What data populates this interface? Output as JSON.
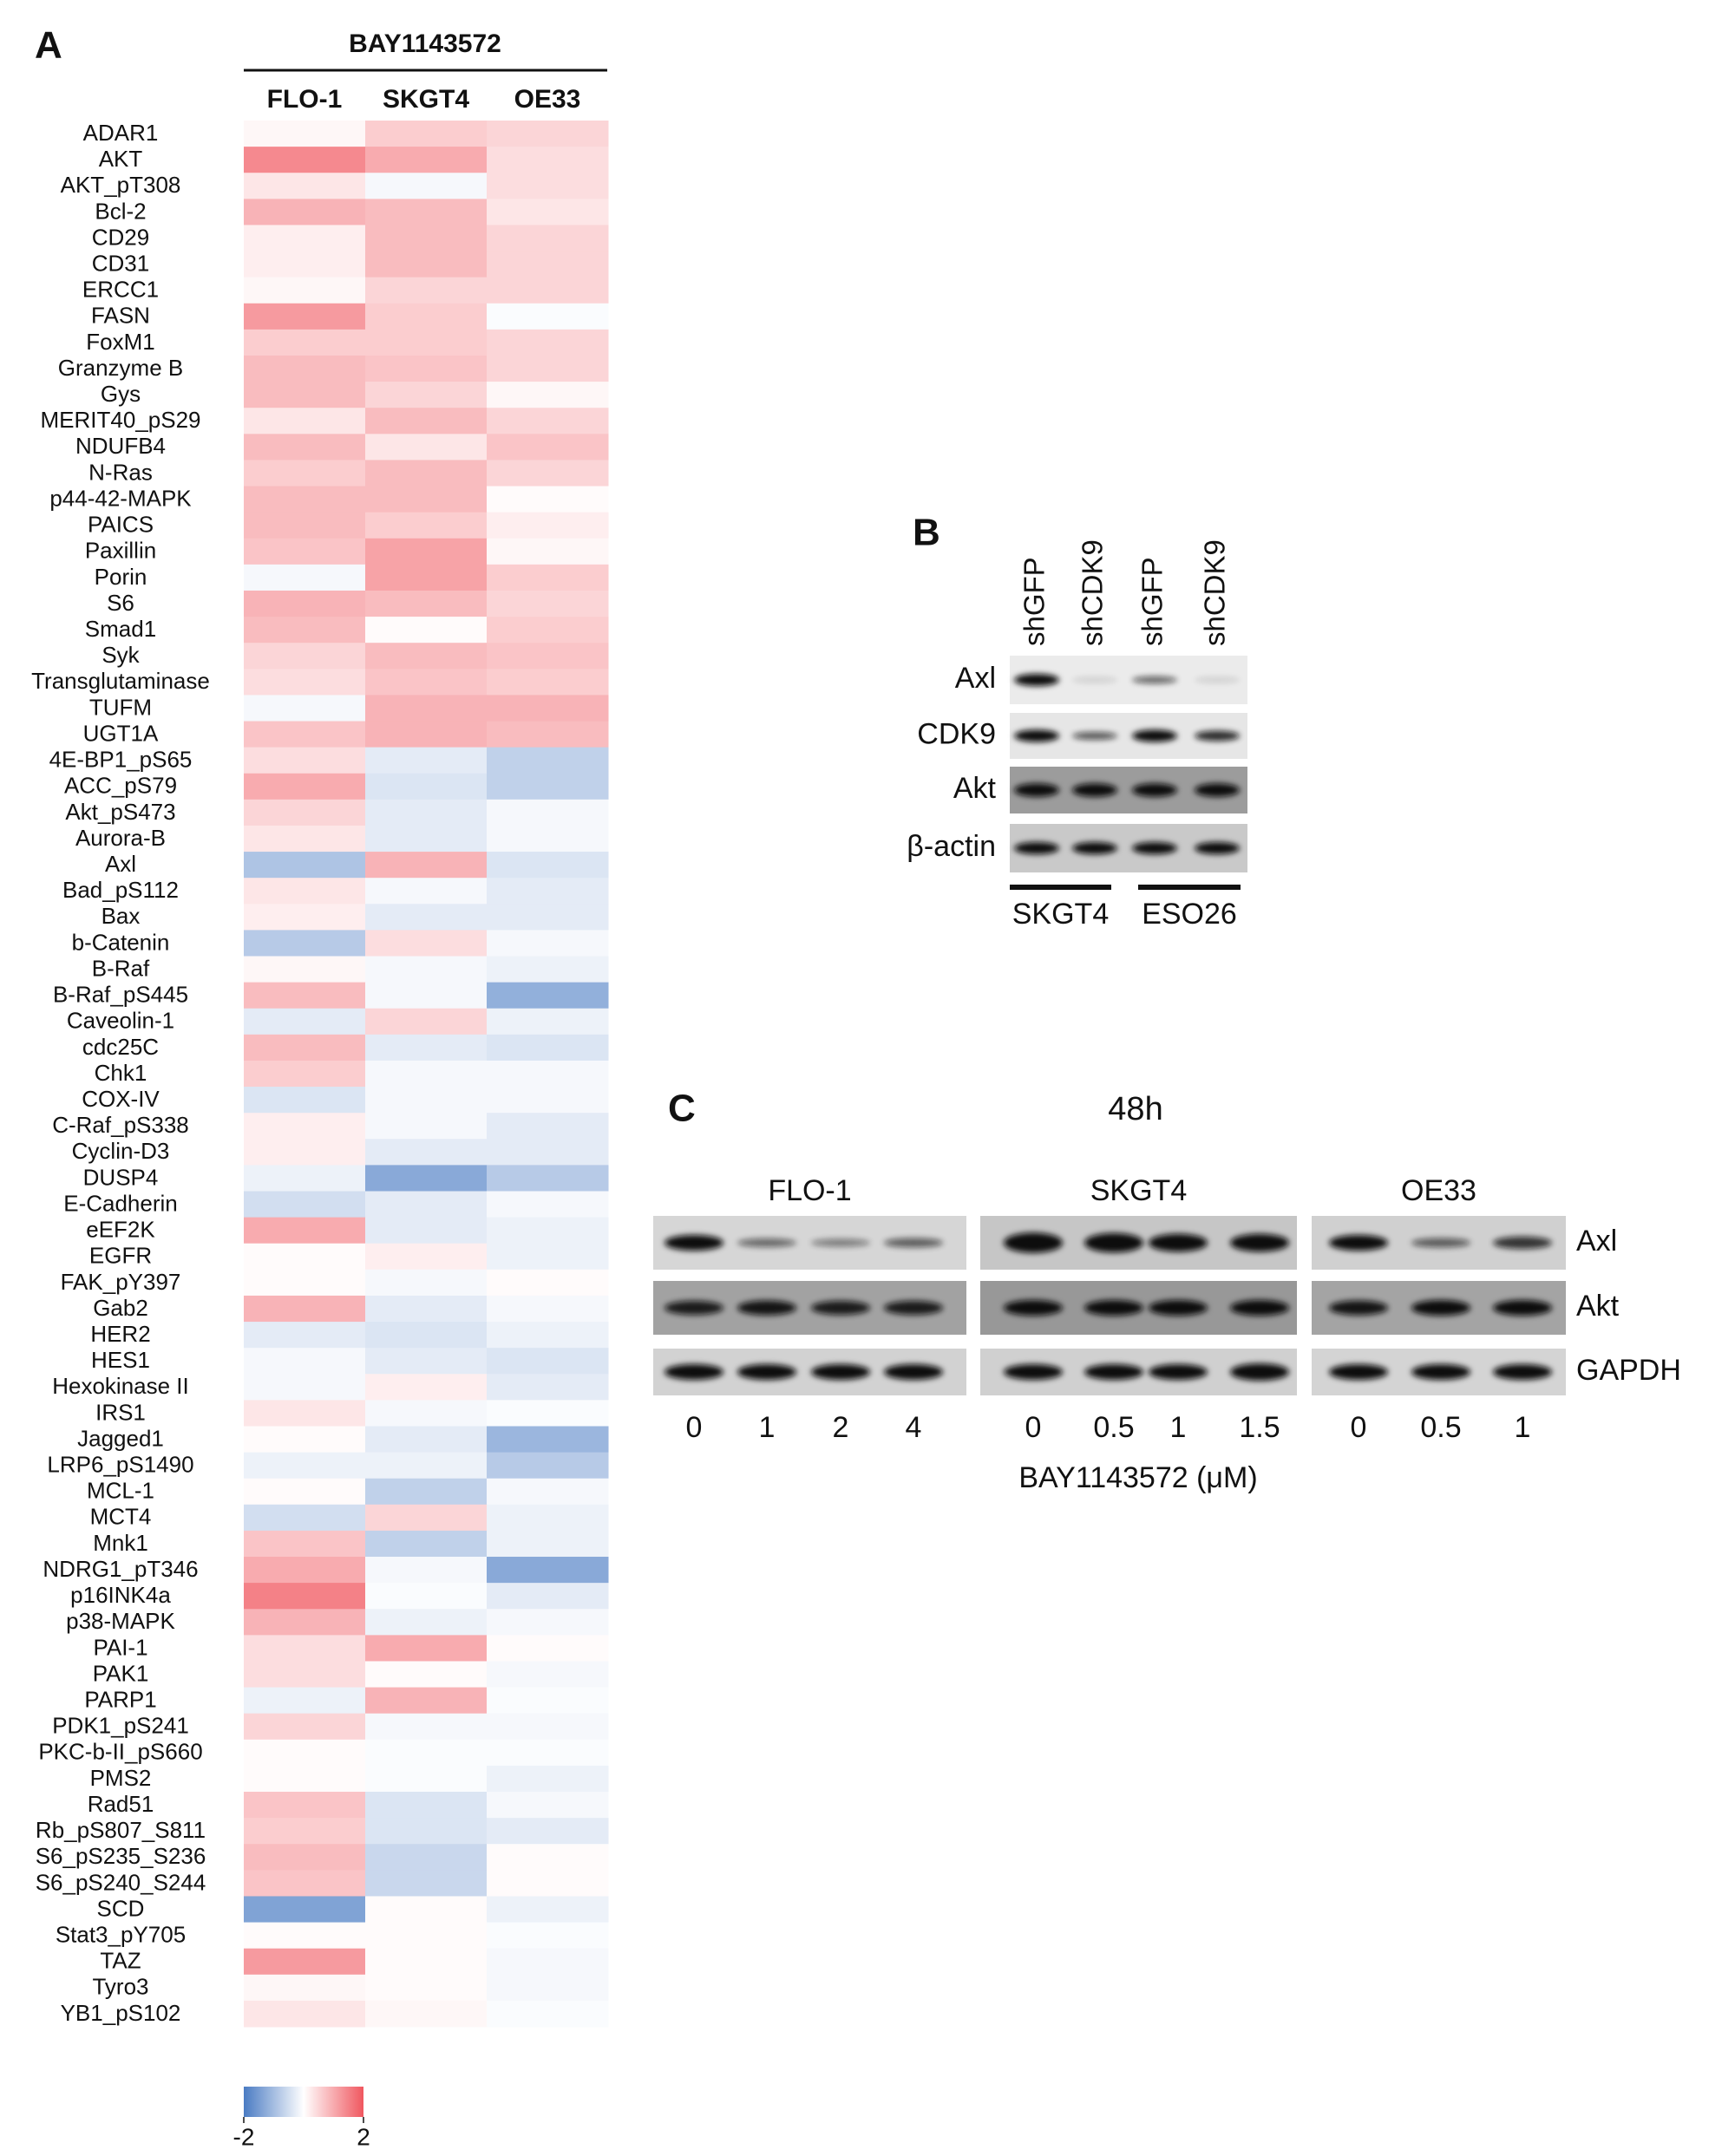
{
  "chart_data": {
    "type": "heatmap",
    "panel_label": "A",
    "title": "BAY1143572",
    "x": [
      "FLO-1",
      "SKGT4",
      "OE33"
    ],
    "y": [
      "ADAR1",
      "AKT",
      "AKT_pT308",
      "Bcl-2",
      "CD29",
      "CD31",
      "ERCC1",
      "FASN",
      "FoxM1",
      "Granzyme B",
      "Gys",
      "MERIT40_pS29",
      "NDUFB4",
      "N-Ras",
      "p44-42-MAPK",
      "PAICS",
      "Paxillin",
      "Porin",
      "S6",
      "Smad1",
      "Syk",
      "Transglutaminase",
      "TUFM",
      "UGT1A",
      "4E-BP1_pS65",
      "ACC_pS79",
      "Akt_pS473",
      "Aurora-B",
      "Axl",
      "Bad_pS112",
      "Bax",
      "b-Catenin",
      "B-Raf",
      "B-Raf_pS445",
      "Caveolin-1",
      "cdc25C",
      "Chk1",
      "COX-IV",
      "C-Raf_pS338",
      "Cyclin-D3",
      "DUSP4",
      "E-Cadherin",
      "eEF2K",
      "EGFR",
      "FAK_pY397",
      "Gab2",
      "HER2",
      "HES1",
      "Hexokinase II",
      "IRS1",
      "Jagged1",
      "LRP6_pS1490",
      "MCL-1",
      "MCT4",
      "Mnk1",
      "NDRG1_pT346",
      "p16INK4a",
      "p38-MAPK",
      "PAI-1",
      "PAK1",
      "PARP1",
      "PDK1_pS241",
      "PKC-b-II_pS660",
      "PMS2",
      "Rad51",
      "Rb_pS807_S811",
      "S6_pS235_S236",
      "S6_pS240_S244",
      "SCD",
      "Stat3_pY705",
      "TAZ",
      "Tyro3",
      "YB1_pS102"
    ],
    "z": [
      [
        0.1,
        0.6,
        0.5
      ],
      [
        1.4,
        1.0,
        0.4
      ],
      [
        0.3,
        -0.1,
        0.4
      ],
      [
        0.9,
        0.8,
        0.3
      ],
      [
        0.2,
        0.8,
        0.5
      ],
      [
        0.2,
        0.8,
        0.5
      ],
      [
        0.1,
        0.5,
        0.5
      ],
      [
        1.2,
        0.6,
        -0.05
      ],
      [
        0.6,
        0.6,
        0.5
      ],
      [
        0.8,
        0.7,
        0.5
      ],
      [
        0.8,
        0.5,
        0.1
      ],
      [
        0.3,
        0.8,
        0.5
      ],
      [
        0.8,
        0.3,
        0.7
      ],
      [
        0.6,
        0.8,
        0.5
      ],
      [
        0.8,
        0.8,
        0.05
      ],
      [
        0.8,
        0.6,
        0.2
      ],
      [
        0.7,
        1.1,
        0.1
      ],
      [
        -0.1,
        1.1,
        0.6
      ],
      [
        0.9,
        0.8,
        0.5
      ],
      [
        0.8,
        0.05,
        0.6
      ],
      [
        0.5,
        0.8,
        0.7
      ],
      [
        0.4,
        0.7,
        0.6
      ],
      [
        -0.1,
        0.9,
        0.9
      ],
      [
        0.7,
        0.9,
        0.8
      ],
      [
        0.4,
        -0.3,
        -0.7
      ],
      [
        1.0,
        -0.4,
        -0.7
      ],
      [
        0.5,
        -0.3,
        -0.1
      ],
      [
        0.3,
        -0.3,
        -0.1
      ],
      [
        -0.9,
        0.9,
        -0.4
      ],
      [
        0.3,
        -0.1,
        -0.3
      ],
      [
        0.2,
        -0.3,
        -0.3
      ],
      [
        -0.8,
        0.4,
        -0.1
      ],
      [
        0.1,
        -0.1,
        -0.2
      ],
      [
        0.8,
        -0.1,
        -1.2
      ],
      [
        -0.3,
        0.5,
        -0.2
      ],
      [
        0.8,
        -0.3,
        -0.4
      ],
      [
        0.6,
        -0.1,
        -0.1
      ],
      [
        -0.4,
        -0.1,
        -0.1
      ],
      [
        0.2,
        -0.1,
        -0.3
      ],
      [
        0.2,
        -0.3,
        -0.3
      ],
      [
        -0.2,
        -1.3,
        -0.8
      ],
      [
        -0.5,
        -0.3,
        -0.1
      ],
      [
        1.0,
        -0.3,
        -0.2
      ],
      [
        0.05,
        0.2,
        -0.2
      ],
      [
        0.05,
        -0.1,
        0.05
      ],
      [
        0.9,
        -0.3,
        -0.1
      ],
      [
        -0.3,
        -0.4,
        -0.2
      ],
      [
        -0.1,
        -0.3,
        -0.4
      ],
      [
        -0.1,
        0.2,
        -0.3
      ],
      [
        0.3,
        -0.1,
        -0.05
      ],
      [
        0.05,
        -0.3,
        -1.1
      ],
      [
        -0.2,
        -0.2,
        -0.8
      ],
      [
        0.05,
        -0.7,
        -0.1
      ],
      [
        -0.5,
        0.5,
        -0.2
      ],
      [
        0.7,
        -0.7,
        -0.2
      ],
      [
        1.0,
        -0.1,
        -1.3
      ],
      [
        1.5,
        -0.05,
        -0.3
      ],
      [
        0.9,
        -0.2,
        -0.1
      ],
      [
        0.4,
        1.0,
        0.05
      ],
      [
        0.4,
        0.05,
        -0.1
      ],
      [
        -0.2,
        0.9,
        -0.05
      ],
      [
        0.5,
        -0.1,
        -0.1
      ],
      [
        0.05,
        -0.05,
        -0.05
      ],
      [
        0.05,
        -0.05,
        -0.2
      ],
      [
        0.7,
        -0.4,
        -0.1
      ],
      [
        0.6,
        -0.4,
        -0.3
      ],
      [
        0.8,
        -0.6,
        0.05
      ],
      [
        0.7,
        -0.6,
        0.05
      ],
      [
        -1.4,
        0.05,
        -0.2
      ],
      [
        0.05,
        0.05,
        -0.05
      ],
      [
        1.2,
        0.05,
        -0.1
      ],
      [
        0.1,
        0.05,
        -0.1
      ],
      [
        0.3,
        0.1,
        -0.05
      ]
    ],
    "zlim": [
      -2,
      2
    ],
    "colorscale": [
      "#4a7bc3",
      "#ffffff",
      "#f0575f"
    ],
    "colorbar_ticks": [
      -2,
      2
    ]
  },
  "panel_b": {
    "label": "B",
    "lanes": [
      "shGFP",
      "shCDK9",
      "shGFP",
      "shCDK9"
    ],
    "rows": [
      "Axl",
      "CDK9",
      "Akt",
      "β-actin"
    ],
    "groups": [
      "SKGT4",
      "ESO26"
    ]
  },
  "panel_c": {
    "label": "C",
    "time": "48h",
    "groups": [
      {
        "name": "FLO-1",
        "doses": [
          "0",
          "1",
          "2",
          "4"
        ]
      },
      {
        "name": "SKGT4",
        "doses": [
          "0",
          "0.5",
          "1",
          "1.5"
        ]
      },
      {
        "name": "OE33",
        "doses": [
          "0",
          "0.5",
          "1"
        ]
      }
    ],
    "rows": [
      "Axl",
      "Akt",
      "GAPDH"
    ],
    "x_label": "BAY1143572 (μM)"
  }
}
